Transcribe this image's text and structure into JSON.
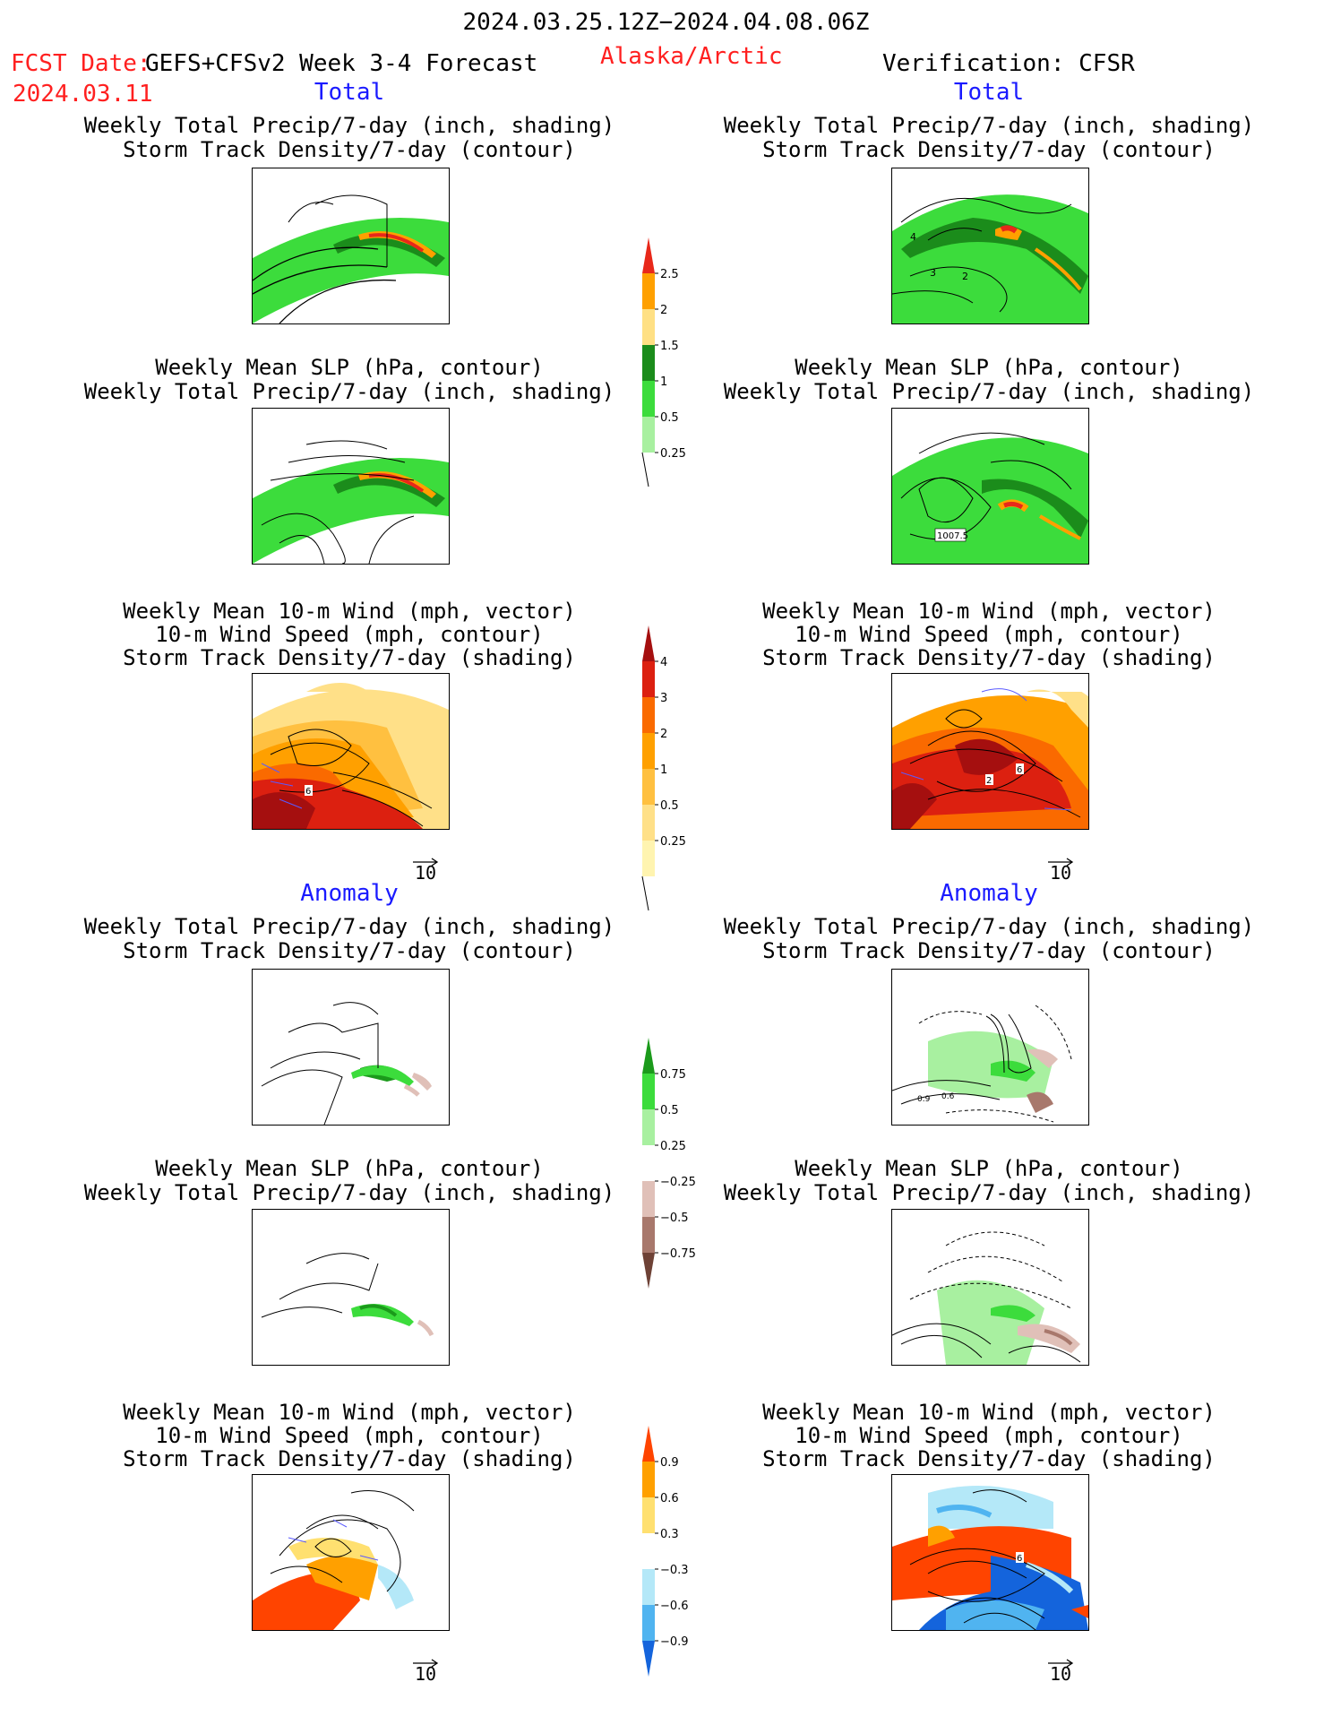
{
  "header": {
    "period": "2024.03.25.12Z−2024.04.08.06Z",
    "fcst_label": "FCST Date:",
    "fcst_date": "2024.03.11",
    "model": "GEFS+CFSv2 Week 3-4 Forecast",
    "region": "Alaska/Arctic",
    "verification": "Verification: CFSR"
  },
  "sections": {
    "total": "Total",
    "anomaly": "Anomaly"
  },
  "titles": {
    "precip_storm": [
      "Weekly Total Precip/7-day (inch, shading)",
      "Storm Track Density/7-day (contour)"
    ],
    "slp_precip": [
      "Weekly Mean SLP (hPa, contour)",
      "Weekly Total Precip/7-day (inch, shading)"
    ],
    "wind_storm": [
      "Weekly Mean 10-m Wind (mph, vector)",
      "10-m Wind Speed (mph, contour)",
      "Storm Track Density/7-day (shading)"
    ]
  },
  "map_labels": {
    "fc_total_wind": "6",
    "ver_total_precip": [
      "4",
      "3",
      "2"
    ],
    "ver_total_slp": "1007.5",
    "ver_total_wind": [
      "2",
      "6"
    ],
    "ver_anom_precip": [
      "0.9",
      "0.6"
    ],
    "ver_anom_wind": "6"
  },
  "vector_ref": "10",
  "colorbars": {
    "precip_total": {
      "labels": [
        "2.5",
        "2",
        "1.5",
        "1",
        "0.5",
        "0.25"
      ],
      "colors": [
        "#e8281a",
        "#ffa000",
        "#ffe084",
        "#1b8c1b",
        "#3cdc3c",
        "#a8f0a0"
      ]
    },
    "storm_total": {
      "labels": [
        "4",
        "3",
        "2",
        "1",
        "0.5",
        "0.25"
      ],
      "colors": [
        "#a50f0f",
        "#dc2010",
        "#fa6a00",
        "#ffa000",
        "#ffc040",
        "#ffe088",
        "#fff4b0"
      ]
    },
    "precip_anom": {
      "labels": [
        "0.75",
        "0.5",
        "0.25",
        "−0.25",
        "−0.5",
        "−0.75"
      ],
      "colors": [
        "#1b9a1b",
        "#3cdc3c",
        "#a8f0a0",
        "#ffffff",
        "#e0c0b8",
        "#a8786c",
        "#6e4236"
      ]
    },
    "storm_anom": {
      "labels": [
        "0.9",
        "0.6",
        "0.3",
        "−0.3",
        "−0.6",
        "−0.9"
      ],
      "colors": [
        "#ff4400",
        "#ffa000",
        "#ffe070",
        "#ffffff",
        "#b4e8f8",
        "#50b4f0",
        "#1464dc"
      ]
    }
  }
}
